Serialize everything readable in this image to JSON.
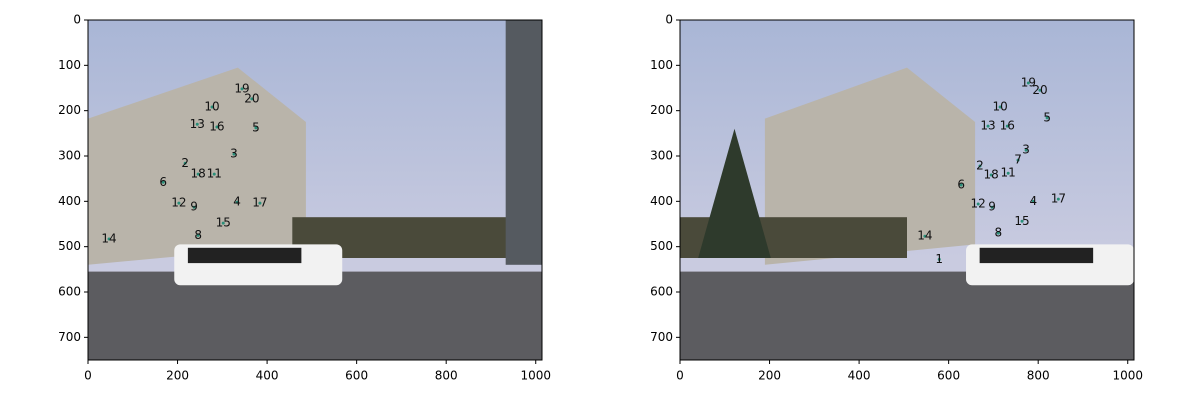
{
  "chart_data": [
    {
      "type": "scatter",
      "xlim": [
        0,
        1014
      ],
      "ylim": [
        750,
        0
      ],
      "xticks": [
        0,
        200,
        400,
        600,
        800,
        1000
      ],
      "yticks": [
        0,
        100,
        200,
        300,
        400,
        500,
        600,
        700
      ],
      "labels": [
        "19",
        "20",
        "10",
        "13",
        "16",
        "5",
        "3",
        "2",
        "18",
        "11",
        "6",
        "12",
        "9",
        "4",
        "17",
        "15",
        "8",
        "14"
      ],
      "x": [
        344,
        366,
        277,
        244,
        288,
        375,
        326,
        217,
        246,
        282,
        168,
        203,
        237,
        333,
        384,
        302,
        246,
        47
      ],
      "y": [
        152,
        174,
        192,
        230,
        236,
        238,
        296,
        316,
        340,
        340,
        358,
        404,
        413,
        402,
        404,
        448,
        475,
        483
      ]
    },
    {
      "type": "scatter",
      "xlim": [
        0,
        1014
      ],
      "ylim": [
        750,
        0
      ],
      "xticks": [
        0,
        200,
        400,
        600,
        800,
        1000
      ],
      "yticks": [
        0,
        100,
        200,
        300,
        400,
        500,
        600,
        700
      ],
      "labels": [
        "19",
        "20",
        "10",
        "13",
        "16",
        "5",
        "3",
        "7",
        "2",
        "18",
        "11",
        "6",
        "12",
        "9",
        "4",
        "17",
        "15",
        "8",
        "14",
        "1"
      ],
      "x": [
        778,
        804,
        715,
        688,
        731,
        820,
        773,
        755,
        670,
        695,
        733,
        628,
        666,
        697,
        789,
        845,
        764,
        711,
        547,
        579
      ],
      "y": [
        139,
        155,
        192,
        234,
        234,
        216,
        287,
        309,
        322,
        342,
        338,
        364,
        406,
        413,
        400,
        395,
        444,
        470,
        477,
        528
      ]
    }
  ]
}
